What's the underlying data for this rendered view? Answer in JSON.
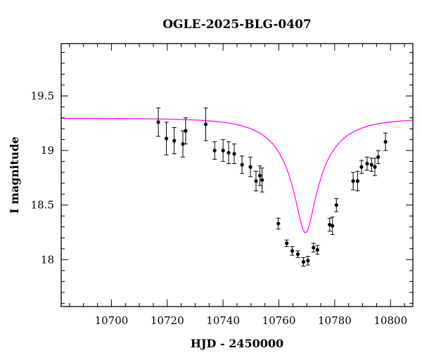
{
  "chart_data": {
    "type": "scatter",
    "title": "OGLE-2025-BLG-0407",
    "xlabel": "HJD - 2450000",
    "ylabel": "I magnitude",
    "xlim": [
      10682,
      10808
    ],
    "ylim": [
      19.98,
      17.57
    ],
    "y_inverted": true,
    "grid": false,
    "legend": "none",
    "x_major_ticks": [
      10700,
      10720,
      10740,
      10760,
      10780,
      10800
    ],
    "x_minor_step": 5,
    "y_major_ticks": [
      18,
      18.5,
      19,
      19.5
    ],
    "y_tick_labels": [
      "18",
      "18.5",
      "19",
      "19.5"
    ],
    "y_minor_step": 0.1,
    "colors": {
      "data": "#000000",
      "model": "#ff00ff"
    },
    "series": [
      {
        "type": "errorbar",
        "x": [
          10716.8,
          10719.7,
          10722.5,
          10725.6,
          10726.6,
          10733.8,
          10737.0,
          10740.0,
          10742.0,
          10744.0,
          10746.8,
          10749.8,
          10751.8,
          10753.2,
          10754.0,
          10759.8,
          10762.8,
          10764.8,
          10766.8,
          10768.8,
          10770.4,
          10772.4,
          10773.8,
          10778.2,
          10779.2,
          10780.6,
          10786.6,
          10788.2,
          10789.6,
          10791.6,
          10793.2,
          10794.4,
          10795.6,
          10798.2
        ],
        "y": [
          19.26,
          19.11,
          19.09,
          19.06,
          19.18,
          19.24,
          19.0,
          19.0,
          18.98,
          18.97,
          18.87,
          18.85,
          18.72,
          18.77,
          18.73,
          18.33,
          18.15,
          18.08,
          18.05,
          17.98,
          17.99,
          18.11,
          18.09,
          18.32,
          18.31,
          18.5,
          18.72,
          18.72,
          18.85,
          18.88,
          18.87,
          18.85,
          18.94,
          19.08
        ],
        "yerr": [
          0.13,
          0.15,
          0.12,
          0.12,
          0.12,
          0.15,
          0.08,
          0.1,
          0.1,
          0.09,
          0.08,
          0.09,
          0.09,
          0.09,
          0.11,
          0.05,
          0.03,
          0.04,
          0.03,
          0.04,
          0.04,
          0.04,
          0.04,
          0.06,
          0.08,
          0.06,
          0.08,
          0.09,
          0.06,
          0.06,
          0.06,
          0.08,
          0.06,
          0.08
        ]
      },
      {
        "type": "model-curve",
        "model": "pspl",
        "t0": 10769.5,
        "u0": 0.1725,
        "tE": 18.0,
        "baseline_mag": 19.296,
        "blend_fraction_source": 0.335
      }
    ]
  }
}
